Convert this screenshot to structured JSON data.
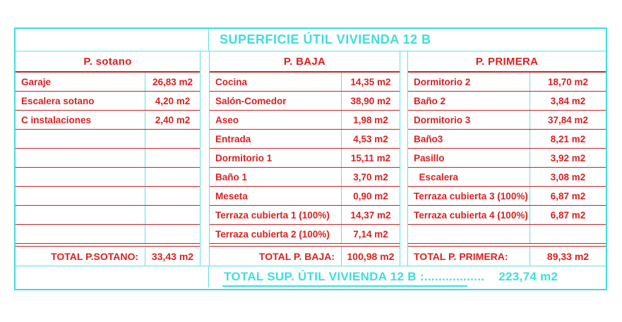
{
  "title": "SUPERFICIE ÚTIL VIVIENDA 12 B",
  "colors": {
    "red": "#d92121",
    "cyan": "#3edede",
    "background": "#ffffff"
  },
  "panels": [
    {
      "id": "p-sotano",
      "header": "P. sotano",
      "rows": [
        {
          "label": "Garaje",
          "value": "26,83 m2"
        },
        {
          "label": "Escalera sotano",
          "value": "4,20 m2"
        },
        {
          "label": "C instalaciones",
          "value": "2,40 m2"
        },
        {
          "label": "",
          "value": ""
        },
        {
          "label": "",
          "value": ""
        },
        {
          "label": "",
          "value": ""
        },
        {
          "label": "",
          "value": ""
        },
        {
          "label": "",
          "value": ""
        },
        {
          "label": "",
          "value": ""
        }
      ],
      "total_label": "TOTAL P.SOTANO:",
      "total_value": "33,43 m2"
    },
    {
      "id": "p-baja",
      "header": "P. BAJA",
      "rows": [
        {
          "label": "Cocina",
          "value": "14,35 m2"
        },
        {
          "label": "Salón-Comedor",
          "value": "38,90 m2"
        },
        {
          "label": "Aseo",
          "value": "1,98 m2"
        },
        {
          "label": "Entrada",
          "value": "4,53 m2"
        },
        {
          "label": "Dormitorio 1",
          "value": "15,11 m2"
        },
        {
          "label": "Baño 1",
          "value": "3,70 m2"
        },
        {
          "label": "Meseta",
          "value": "0,90 m2"
        },
        {
          "label": "Terraza cubierta 1 (100%)",
          "value": "14,37 m2"
        },
        {
          "label": "Terraza cubierta 2 (100%)",
          "value": "7,14 m2"
        }
      ],
      "total_label": "TOTAL P. BAJA:",
      "total_value": "100,98 m2"
    },
    {
      "id": "p-primera",
      "header": "P. PRIMERA",
      "rows": [
        {
          "label": "Dormitorio 2",
          "value": "18,70 m2"
        },
        {
          "label": "Baño 2",
          "value": "3,84 m2"
        },
        {
          "label": "Dormitorio 3",
          "value": "37,84 m2"
        },
        {
          "label": "Baño3",
          "value": "8,21 m2"
        },
        {
          "label": "Pasillo",
          "value": "3,92 m2"
        },
        {
          "label": "  Escalera",
          "value": "3,08 m2"
        },
        {
          "label": "Terraza cubierta 3 (100%)",
          "value": "6,87 m2"
        },
        {
          "label": "Terraza cubierta 4 (100%)",
          "value": "6,87 m2"
        },
        {
          "label": "",
          "value": ""
        }
      ],
      "total_label": "TOTAL P. PRIMERA:",
      "total_value": "89,33 m2"
    }
  ],
  "grand_total": {
    "label": "TOTAL SUP. ÚTIL VIVIENDA 12 B :.................",
    "value": "223,74 m2"
  }
}
